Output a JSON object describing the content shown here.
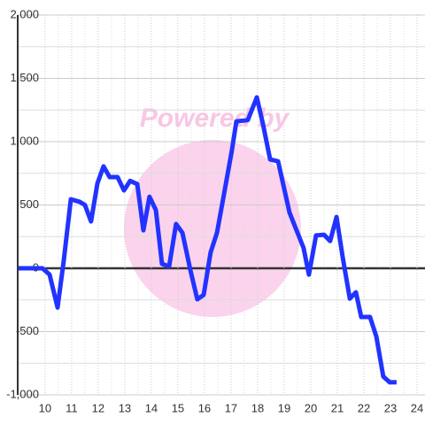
{
  "chart_data": {
    "type": "line",
    "watermark": "Powered by",
    "x": [
      9.0,
      9.9,
      10.17,
      10.47,
      10.7,
      10.97,
      11.3,
      11.5,
      11.73,
      11.97,
      12.2,
      12.43,
      12.73,
      12.97,
      13.2,
      13.47,
      13.7,
      13.93,
      14.17,
      14.4,
      14.67,
      14.93,
      15.17,
      15.47,
      15.73,
      15.97,
      16.23,
      16.47,
      16.73,
      17.03,
      17.2,
      17.63,
      17.97,
      18.2,
      18.47,
      18.77,
      19.2,
      19.73,
      19.93,
      20.2,
      20.5,
      20.73,
      20.97,
      21.2,
      21.47,
      21.7,
      21.9,
      22.23,
      22.47,
      22.73,
      22.97,
      23.23
    ],
    "series": [
      {
        "color": "#2233ff",
        "values": [
          0,
          0,
          -50,
          -310,
          55,
          545,
          525,
          500,
          370,
          670,
          805,
          720,
          720,
          615,
          690,
          665,
          300,
          565,
          460,
          35,
          15,
          350,
          280,
          -15,
          -245,
          -210,
          125,
          280,
          580,
          930,
          1160,
          1170,
          1350,
          1140,
          860,
          845,
          440,
          160,
          -50,
          260,
          265,
          215,
          405,
          90,
          -240,
          -190,
          -385,
          -385,
          -540,
          -855,
          -900,
          -900
        ]
      }
    ],
    "xlim": [
      8.97,
      24.3
    ],
    "xticks": [
      10,
      11,
      12,
      13,
      14,
      15,
      16,
      17,
      18,
      19,
      20,
      21,
      22,
      23,
      24
    ],
    "ylim": [
      -1000,
      2000
    ],
    "yticks": [
      {
        "value": 2000,
        "label": "2,000"
      },
      {
        "value": 1500,
        "label": "1,500"
      },
      {
        "value": 1000,
        "label": "1,000"
      },
      500,
      0,
      -500,
      {
        "value": -1000,
        "label": "-1,000"
      }
    ],
    "grid": true
  }
}
